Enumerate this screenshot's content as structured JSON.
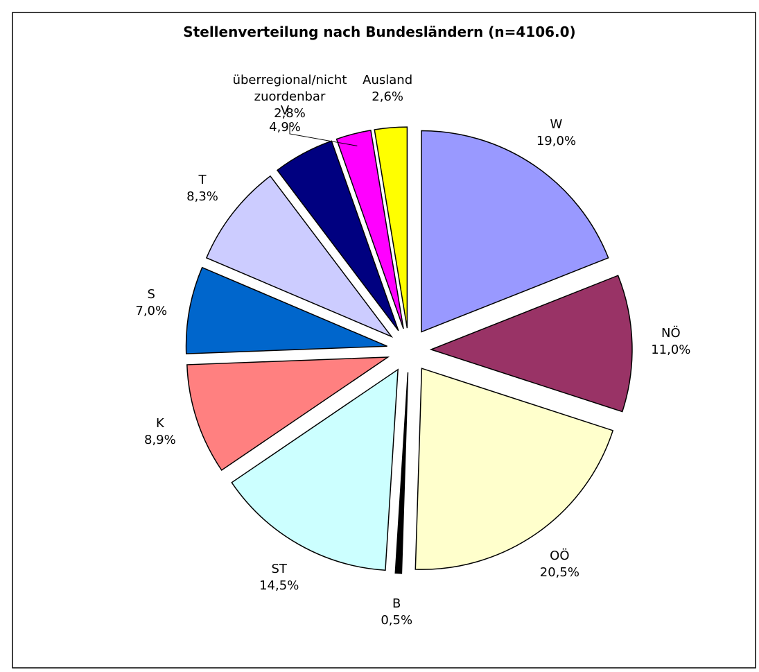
{
  "chart_data": {
    "type": "pie",
    "title": "Stellenverteilung nach Bundesländern (n=4106.0)",
    "categories": [
      "W",
      "NÖ",
      "OÖ",
      "B",
      "ST",
      "K",
      "S",
      "T",
      "V",
      "überregional/nicht zuordenbar",
      "Ausland"
    ],
    "values": [
      19.0,
      11.0,
      20.5,
      0.5,
      14.5,
      8.9,
      7.0,
      8.3,
      4.9,
      2.8,
      2.6
    ],
    "value_labels": [
      "19,0%",
      "11,0%",
      "20,5%",
      "0,5%",
      "14,5%",
      "8,9%",
      "7,0%",
      "8,3%",
      "4,9%",
      "2,8%",
      "2,6%"
    ],
    "colors": [
      "#9999ff",
      "#993366",
      "#ffffcc",
      "#000000",
      "#ccffff",
      "#ff8080",
      "#0066cc",
      "#ccccff",
      "#000080",
      "#ff00ff",
      "#ffff00"
    ]
  }
}
